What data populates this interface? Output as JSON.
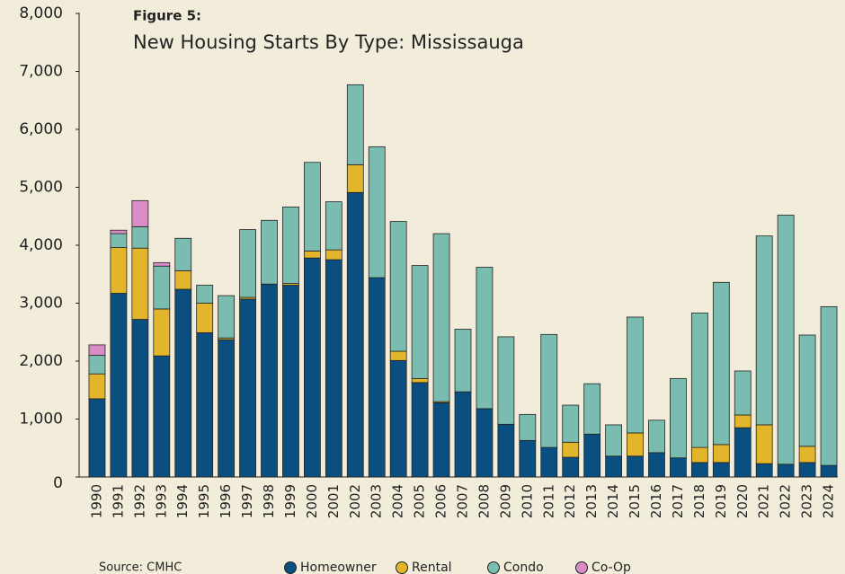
{
  "chart_data": {
    "type": "stacked_bar",
    "figure_label": "Figure 5:",
    "title": "New Housing Starts By Type: Mississauga",
    "source": "Source: CMHC",
    "categories": [
      "1990",
      "1991",
      "1992",
      "1993",
      "1994",
      "1995",
      "1996",
      "1997",
      "1998",
      "1999",
      "2000",
      "2001",
      "2002",
      "2003",
      "2004",
      "2005",
      "2006",
      "2007",
      "2008",
      "2009",
      "2010",
      "2011",
      "2012",
      "2013",
      "2014",
      "2015",
      "2016",
      "2017",
      "2018",
      "2019",
      "2020",
      "2021",
      "2022",
      "2023",
      "2024"
    ],
    "series": [
      {
        "name": "Homeowner",
        "color": "#0b4f80",
        "values": [
          1350,
          3170,
          2720,
          2090,
          3240,
          2490,
          2370,
          3070,
          3330,
          3310,
          3780,
          3750,
          4910,
          3440,
          2010,
          1630,
          1280,
          1470,
          1180,
          910,
          630,
          510,
          340,
          740,
          360,
          360,
          420,
          330,
          250,
          250,
          850,
          230,
          220,
          250,
          200
        ]
      },
      {
        "name": "Rental",
        "color": "#e3b52a",
        "values": [
          430,
          790,
          1230,
          810,
          320,
          510,
          30,
          30,
          0,
          30,
          120,
          170,
          480,
          0,
          160,
          70,
          20,
          0,
          0,
          0,
          0,
          0,
          260,
          0,
          0,
          400,
          0,
          0,
          260,
          310,
          220,
          670,
          0,
          280,
          0
        ]
      },
      {
        "name": "Condo",
        "color": "#7bbcb0",
        "values": [
          320,
          240,
          370,
          740,
          560,
          310,
          730,
          1170,
          1100,
          1320,
          1530,
          830,
          1380,
          2260,
          2240,
          1950,
          2900,
          1080,
          2440,
          1510,
          450,
          1950,
          640,
          870,
          540,
          2000,
          560,
          1370,
          2320,
          2800,
          760,
          3260,
          4300,
          1920,
          2740
        ]
      },
      {
        "name": "Co-Op",
        "color": "#d98cc6",
        "values": [
          180,
          60,
          450,
          60,
          0,
          0,
          0,
          0,
          0,
          0,
          0,
          0,
          0,
          0,
          0,
          0,
          0,
          0,
          0,
          0,
          0,
          0,
          0,
          0,
          0,
          0,
          0,
          0,
          0,
          0,
          0,
          0,
          0,
          0,
          0
        ]
      }
    ],
    "ylim": [
      0,
      8000
    ],
    "yticks": [
      0,
      {
        "value": 1000,
        "label": "1,000"
      },
      {
        "value": 2000,
        "label": "2,000"
      },
      {
        "value": 3000,
        "label": "3,000"
      },
      {
        "value": 4000,
        "label": "4,000"
      },
      {
        "value": 5000,
        "label": "5,000"
      },
      {
        "value": 6000,
        "label": "6,000"
      },
      {
        "value": 7000,
        "label": "7,000"
      },
      {
        "value": 8000,
        "label": "8,000"
      }
    ],
    "grid": false,
    "legend": "bottom"
  }
}
